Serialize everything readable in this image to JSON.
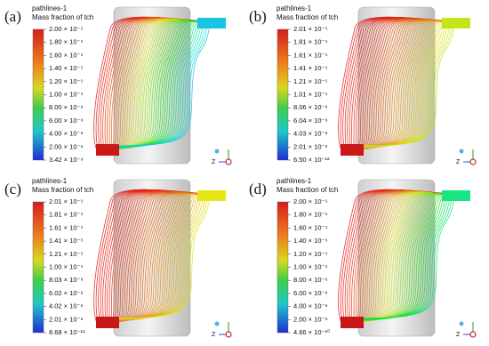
{
  "panels": [
    {
      "label": "(a)",
      "legend_title": "pathlines-1",
      "quantity": "Mass fraction of tch",
      "axis_label": "Z",
      "ticks": [
        "2.00 × 10⁻⁵",
        "1.80 × 10⁻⁵",
        "1.60 × 10⁻⁵",
        "1.40 × 10⁻⁵",
        "1.20 × 10⁻⁵",
        "1.00 × 10⁻⁵",
        "8.00 × 10⁻⁶",
        "6.00 × 10⁻⁶",
        "4.00 × 10⁻⁶",
        "2.00 × 10⁻⁶",
        "3.42 × 10⁻⁹"
      ]
    },
    {
      "label": "(b)",
      "legend_title": "pathlines-1",
      "quantity": "Mass fraction of tch",
      "axis_label": "Z",
      "ticks": [
        "2.01 × 10⁻⁵",
        "1.81 × 10⁻⁵",
        "1.61 × 10⁻⁵",
        "1.41 × 10⁻⁵",
        "1.21 × 10⁻⁵",
        "1.01 × 10⁻⁵",
        "8.06 × 10⁻⁶",
        "6.04 × 10⁻⁶",
        "4.03 × 10⁻⁶",
        "2.01 × 10⁻⁶",
        "6.50 × 10⁻¹²"
      ]
    },
    {
      "label": "(c)",
      "legend_title": "pathlines-1",
      "quantity": "Mass fraction of tch",
      "axis_label": "Z",
      "ticks": [
        "2.01 × 10⁻⁵",
        "1.81 × 10⁻⁵",
        "1.61 × 10⁻⁵",
        "1.41 × 10⁻⁵",
        "1.21 × 10⁻⁵",
        "1.00 × 10⁻⁵",
        "8.03 × 10⁻⁶",
        "6.02 × 10⁻⁶",
        "4.02 × 10⁻⁶",
        "2.01 × 10⁻⁶",
        "8.68 × 10⁻¹¹"
      ]
    },
    {
      "label": "(d)",
      "legend_title": "pathlines-1",
      "quantity": "Mass fraction of tch",
      "axis_label": "Z",
      "ticks": [
        "2.00 × 10⁻⁵",
        "1.80 × 10⁻⁵",
        "1.60 × 10⁻⁵",
        "1.40 × 10⁻⁵",
        "1.20 × 10⁻⁵",
        "1.00 × 10⁻⁵",
        "8.00 × 10⁻⁶",
        "6.00 × 10⁻⁶",
        "4.00 × 10⁻⁶",
        "2.00 × 10⁻⁶",
        "4.66 × 10⁻¹⁰"
      ]
    }
  ]
}
